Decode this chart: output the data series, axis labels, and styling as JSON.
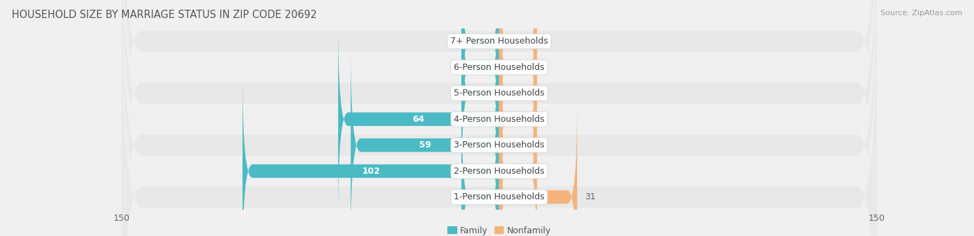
{
  "title": "HOUSEHOLD SIZE BY MARRIAGE STATUS IN ZIP CODE 20692",
  "source": "Source: ZipAtlas.com",
  "categories": [
    "7+ Person Households",
    "6-Person Households",
    "5-Person Households",
    "4-Person Households",
    "3-Person Households",
    "2-Person Households",
    "1-Person Households"
  ],
  "family_values": [
    0,
    0,
    0,
    64,
    59,
    102,
    0
  ],
  "nonfamily_values": [
    0,
    0,
    0,
    0,
    0,
    0,
    31
  ],
  "family_color": "#4abbc4",
  "nonfamily_color": "#f5b37a",
  "xlim": 150,
  "min_bar": 15,
  "bar_height": 0.52,
  "background_color": "#f0f0f0",
  "row_bg_color_even": "#e8e8e8",
  "row_bg_color_odd": "#efefef",
  "label_fontsize": 9.0,
  "title_fontsize": 10.5,
  "source_fontsize": 8.0,
  "legend_fontsize": 9,
  "axis_label_fontsize": 9,
  "value_label_color_on_bar": "#ffffff",
  "value_label_color_off_bar": "#666666"
}
